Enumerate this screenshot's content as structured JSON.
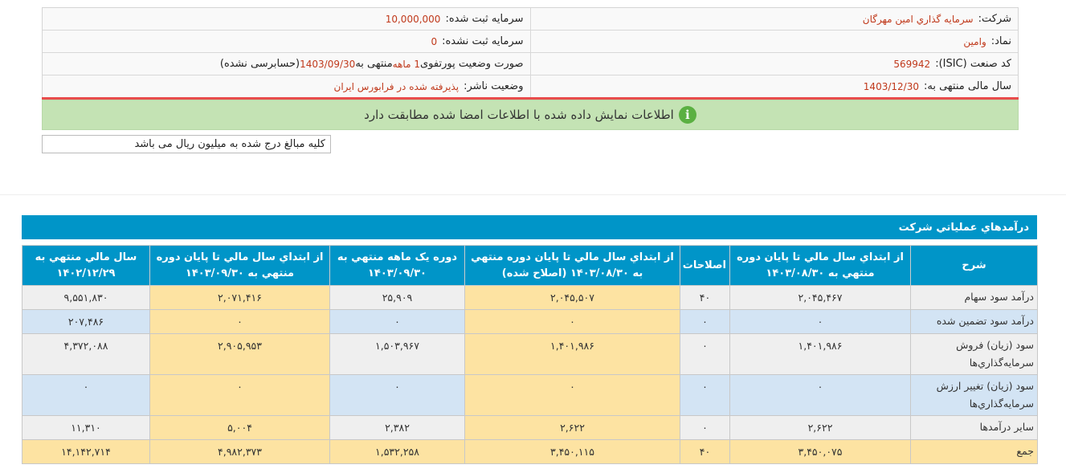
{
  "info": {
    "company_label": "شرکت:",
    "company": "سرمايه گذاري امين مهرگان",
    "capital_label": "سرمایه ثبت شده:",
    "capital": "10,000,000",
    "symbol_label": "نماد:",
    "symbol": "وامین",
    "unreg_label": "سرمایه ثبت نشده:",
    "unreg": "0",
    "isic_label": "کد صنعت (ISIC):",
    "isic": "569942",
    "report_prefix": "صورت وضعیت پورتفوی ",
    "report_period": "1 ماهه",
    "report_mid": "منتهی به",
    "report_date": "1403/09/30",
    "report_suffix": "(حسابرسی نشده)",
    "fy_label": "سال مالی منتهی به:",
    "fy": "1403/12/30",
    "status_label": "وضعیت ناشر:",
    "status": "پذیرفته شده در فرابورس ایران"
  },
  "notice": {
    "icon": "info-icon",
    "text": "اطلاعات نمایش داده شده با اطلاعات امضا شده مطابقت دارد"
  },
  "unit_note": "کلیه مبالغ درج شده به میلیون ریال می باشد",
  "table": {
    "title": "درآمدهاي عملياتي شرکت",
    "headers": [
      "شرح",
      "از ابتداي سال مالي تا پايان دوره منتهي به ۱۴۰۳/۰۸/۳۰",
      "اصلاحات",
      "از ابتداي سال مالي تا پايان دوره منتهي به ۱۴۰۳/۰۸/۳۰ (اصلاح شده)",
      "دوره يک ماهه منتهي به ۱۴۰۳/۰۹/۳۰",
      "از ابتداي سال مالي تا پايان دوره منتهي به ۱۴۰۳/۰۹/۳۰",
      "سال مالي منتهي به ۱۴۰۲/۱۲/۲۹"
    ],
    "rows": [
      [
        "درآمد سود سهام",
        "۲,۰۴۵,۴۶۷",
        "۴۰",
        "۲,۰۴۵,۵۰۷",
        "۲۵,۹۰۹",
        "۲,۰۷۱,۴۱۶",
        "۹,۵۵۱,۸۳۰"
      ],
      [
        "درآمد سود تضمين شده",
        "۰",
        "۰",
        "۰",
        "۰",
        "۰",
        "۲۰۷,۴۸۶"
      ],
      [
        "سود (زيان) فروش سرمايه‌گذاري‌ها",
        "۱,۴۰۱,۹۸۶",
        "۰",
        "۱,۴۰۱,۹۸۶",
        "۱,۵۰۳,۹۶۷",
        "۲,۹۰۵,۹۵۳",
        "۴,۳۷۲,۰۸۸"
      ],
      [
        "سود (زيان) تغيير ارزش سرمايه‌گذاري‌ها",
        "۰",
        "۰",
        "۰",
        "۰",
        "۰",
        "۰"
      ],
      [
        "ساير درآمدها",
        "۲,۶۲۲",
        "۰",
        "۲,۶۲۲",
        "۲,۳۸۲",
        "۵,۰۰۴",
        "۱۱,۳۱۰"
      ],
      [
        "جمع",
        "۳,۴۵۰,۰۷۵",
        "۴۰",
        "۳,۴۵۰,۱۱۵",
        "۱,۵۳۲,۲۵۸",
        "۴,۹۸۲,۳۷۳",
        "۱۴,۱۴۲,۷۱۴"
      ]
    ]
  },
  "colors": {
    "header": "#0095c8",
    "highlight": "#fde3a2",
    "row_gray": "#efefef",
    "row_blue": "#d3e4f4",
    "value": "#c0391b",
    "notice": "#c4e3b4"
  }
}
